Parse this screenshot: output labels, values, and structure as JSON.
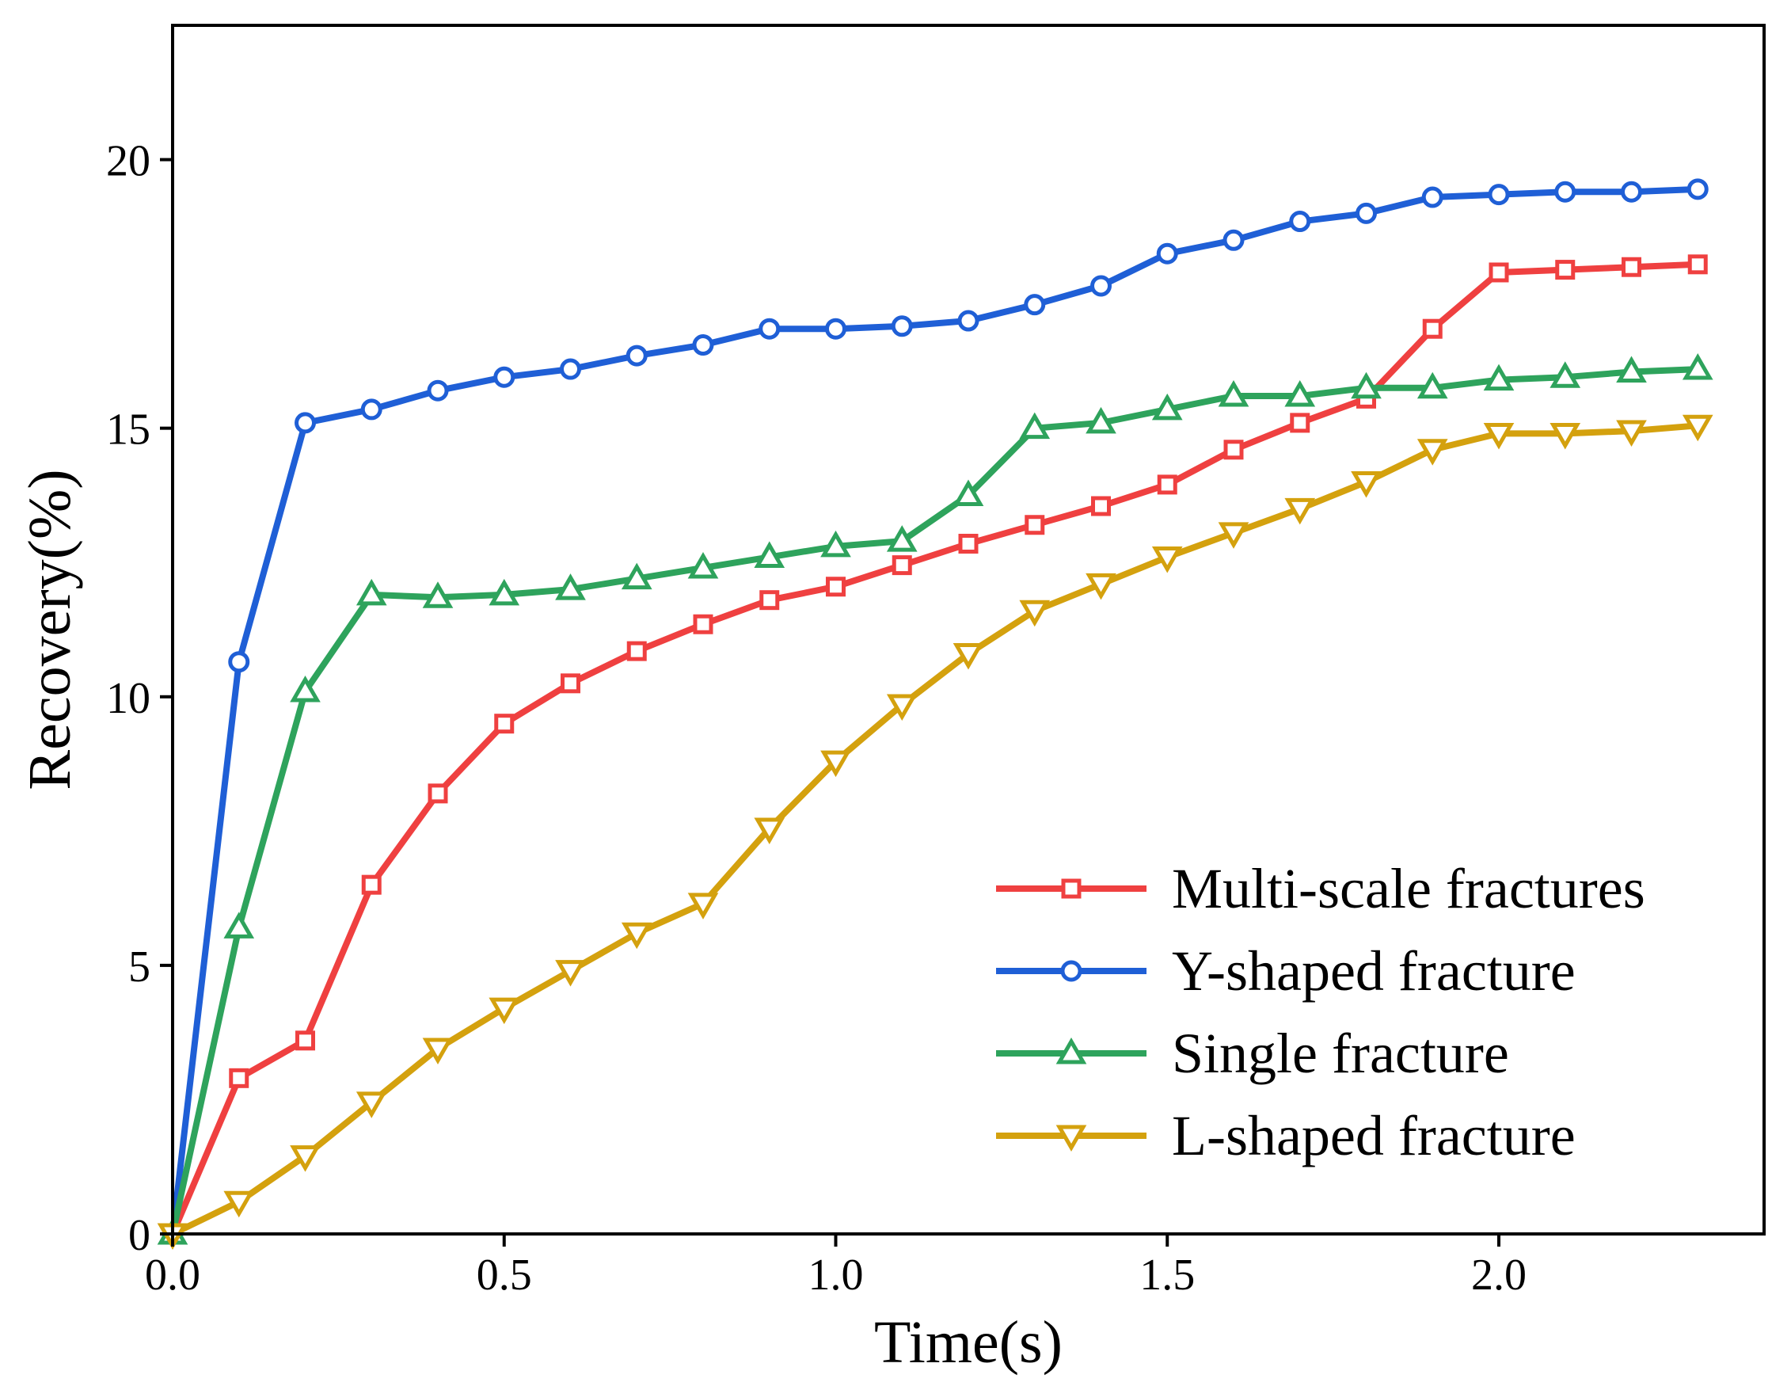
{
  "chart_data": {
    "type": "line",
    "title": "",
    "xlabel": "Time(s)",
    "ylabel": "Recovery(%)",
    "xlim": [
      0,
      2.4
    ],
    "ylim": [
      0,
      22.5
    ],
    "xticks": [
      0.0,
      0.5,
      1.0,
      1.5,
      2.0
    ],
    "xtick_labels": [
      "0.0",
      "0.5",
      "1.0",
      "1.5",
      "2.0"
    ],
    "yticks": [
      0,
      5,
      10,
      15,
      20
    ],
    "ytick_labels": [
      "0",
      "5",
      "10",
      "15",
      "20"
    ],
    "grid": false,
    "legend_position": "bottom-right",
    "x": [
      0.0,
      0.1,
      0.2,
      0.3,
      0.4,
      0.5,
      0.6,
      0.7,
      0.8,
      0.9,
      1.0,
      1.1,
      1.2,
      1.3,
      1.4,
      1.5,
      1.6,
      1.7,
      1.8,
      1.9,
      2.0,
      2.1,
      2.2,
      2.3
    ],
    "series": [
      {
        "name": "Multi-scale fractures",
        "color": "#ef4040",
        "marker": "square",
        "values": [
          0.0,
          2.9,
          3.6,
          6.5,
          8.2,
          9.5,
          10.25,
          10.85,
          11.35,
          11.8,
          12.05,
          12.45,
          12.85,
          13.2,
          13.55,
          13.95,
          14.6,
          15.1,
          15.55,
          16.85,
          17.9,
          17.95,
          18.0,
          18.05
        ]
      },
      {
        "name": "Y-shaped fracture",
        "color": "#1f5fd6",
        "marker": "circle",
        "values": [
          0.0,
          10.65,
          15.1,
          15.35,
          15.7,
          15.95,
          16.1,
          16.35,
          16.55,
          16.85,
          16.85,
          16.9,
          17.0,
          17.3,
          17.65,
          18.25,
          18.5,
          18.85,
          19.0,
          19.3,
          19.35,
          19.4,
          19.4,
          19.45
        ]
      },
      {
        "name": "Single fracture",
        "color": "#2ea35c",
        "marker": "triangle-up",
        "values": [
          0.0,
          5.7,
          10.1,
          11.9,
          11.85,
          11.9,
          12.0,
          12.2,
          12.4,
          12.6,
          12.8,
          12.9,
          13.75,
          15.0,
          15.1,
          15.35,
          15.6,
          15.6,
          15.75,
          15.75,
          15.9,
          15.95,
          16.05,
          16.1
        ]
      },
      {
        "name": "L-shaped fracture",
        "color": "#d4a10e",
        "marker": "triangle-down",
        "values": [
          0.0,
          0.6,
          1.45,
          2.45,
          3.45,
          4.2,
          4.9,
          5.6,
          6.15,
          7.55,
          8.8,
          9.85,
          10.8,
          11.6,
          12.1,
          12.6,
          13.05,
          13.5,
          14.0,
          14.6,
          14.9,
          14.9,
          14.95,
          15.05
        ]
      }
    ]
  }
}
